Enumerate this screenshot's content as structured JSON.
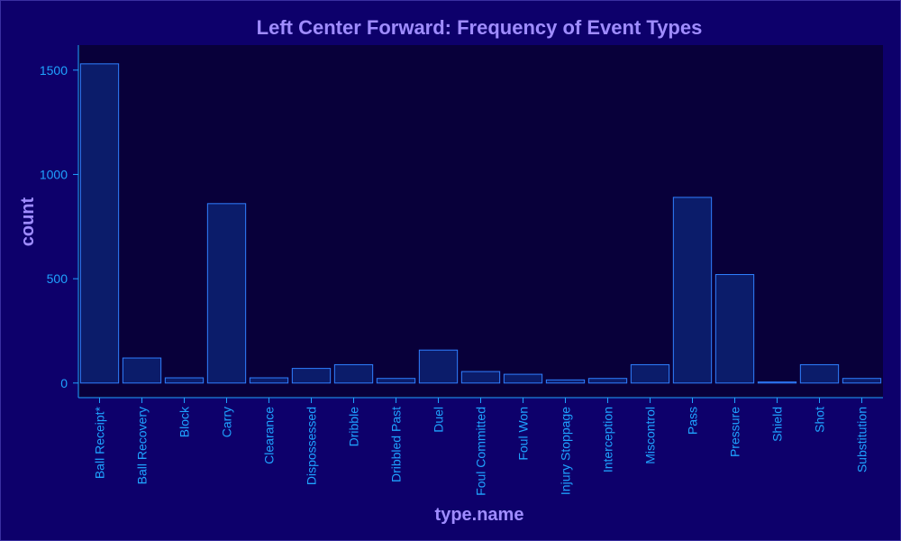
{
  "colors": {
    "background": "#0d006b",
    "plot_bg": "#08003a",
    "bar_fill": "#0b1c6a",
    "bar_stroke": "#2f7fff",
    "axis_line": "#1fa3ff",
    "tick_text": "#1fa3ff",
    "title_text": "#9f8cff"
  },
  "chart_data": {
    "type": "bar",
    "title": "Left Center Forward: Frequency of Event Types",
    "xlabel": "type.name",
    "ylabel": "count",
    "categories": [
      "Ball Receipt*",
      "Ball Recovery",
      "Block",
      "Carry",
      "Clearance",
      "Dispossessed",
      "Dribble",
      "Dribbled Past",
      "Duel",
      "Foul Committed",
      "Foul Won",
      "Injury Stoppage",
      "Interception",
      "Miscontrol",
      "Pass",
      "Pressure",
      "Shield",
      "Shot",
      "Substitution"
    ],
    "values": [
      1530,
      120,
      25,
      860,
      25,
      70,
      88,
      22,
      158,
      55,
      42,
      15,
      22,
      88,
      890,
      520,
      5,
      88,
      22
    ],
    "ylim": [
      -70,
      1620
    ],
    "yticks": [
      0,
      500,
      1000,
      1500
    ],
    "grid": false,
    "legend": false
  }
}
